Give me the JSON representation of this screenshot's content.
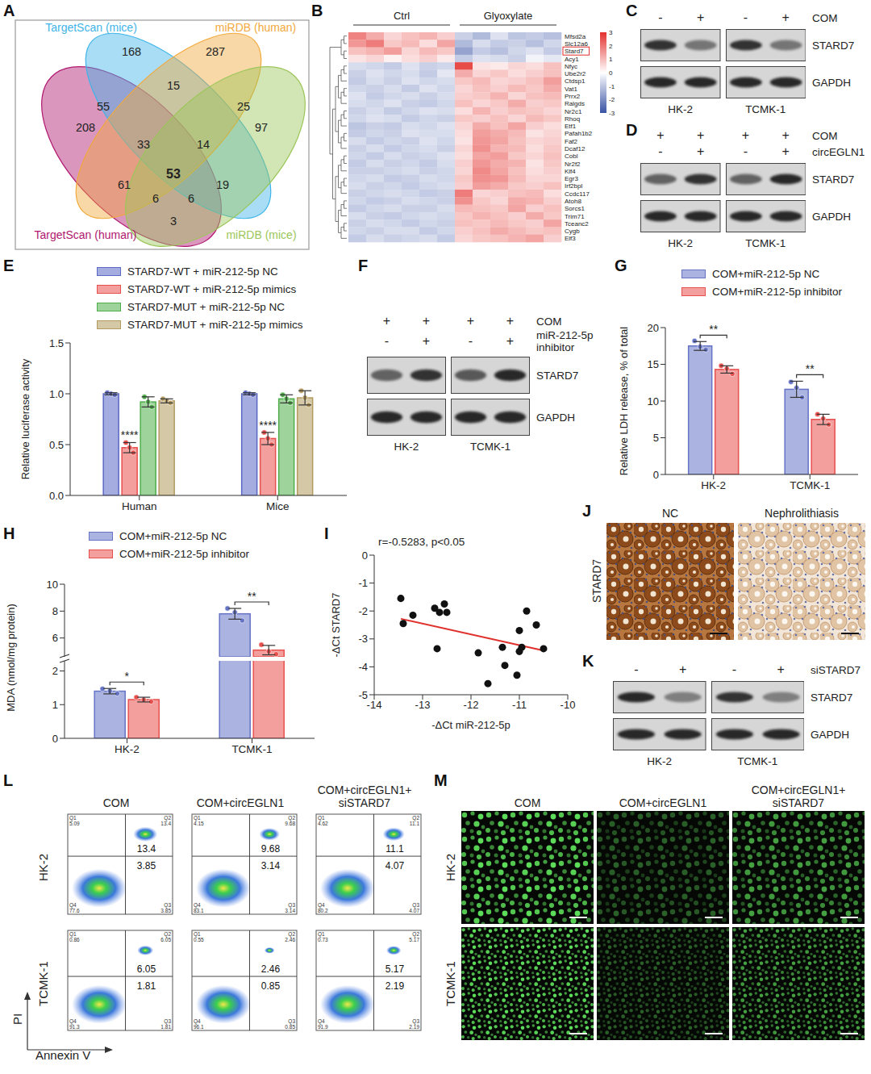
{
  "chart_data": [
    {
      "letter": "E",
      "type": "bar",
      "y_label": "Relative luciferase activity",
      "categories": [
        "Human",
        "Mice"
      ],
      "ylim": [
        0,
        1.5
      ],
      "yticks": [
        {
          "value": 0,
          "label": "0.0"
        },
        0.5,
        {
          "value": 1,
          "label": "1.0"
        },
        1.5
      ],
      "legend": "top",
      "series": [
        {
          "name": "STARD7-WT + miR-212-5p NC",
          "color": "#5b68c4",
          "values": [
            1,
            1
          ],
          "errors": [
            0.01,
            0.01
          ],
          "replicates": [
            [
              1.01,
              1,
              0.99
            ],
            [
              1.01,
              1,
              0.99
            ]
          ]
        },
        {
          "name": "STARD7-WT + miR-212-5p mimics",
          "color": "#e8504e",
          "values": [
            0.47,
            0.56
          ],
          "errors": [
            0.05,
            0.06
          ],
          "replicates": [
            [
              0.52,
              0.47,
              0.42
            ],
            [
              0.62,
              0.56,
              0.5
            ]
          ]
        },
        {
          "name": "STARD7-MUT + miR-212-5p NC",
          "color": "#4fae4a",
          "values": [
            0.92,
            0.95
          ],
          "errors": [
            0.05,
            0.04
          ],
          "replicates": [
            [
              0.97,
              0.92,
              0.87
            ],
            [
              0.99,
              0.95,
              0.91
            ]
          ]
        },
        {
          "name": "STARD7-MUT + miR-212-5p mimics",
          "color": "#b39a5f",
          "values": [
            0.93,
            0.96
          ],
          "errors": [
            0.02,
            0.07
          ],
          "replicates": [
            [
              0.95,
              0.93,
              0.91
            ],
            [
              1.03,
              0.96,
              0.89
            ]
          ]
        }
      ],
      "annotations": [
        {
          "category": "Human",
          "series": "STARD7-WT + miR-212-5p mimics",
          "text": "****"
        },
        {
          "category": "Mice",
          "series": "STARD7-WT + miR-212-5p mimics",
          "text": "****"
        }
      ]
    },
    {
      "letter": "G",
      "type": "bar",
      "y_label": "Relative LDH release, % of total",
      "categories": [
        "HK-2",
        "TCMK-1"
      ],
      "ylim": [
        0,
        20
      ],
      "yticks": [
        0,
        5,
        10,
        15,
        20
      ],
      "legend": "top",
      "series": [
        {
          "name": "COM+miR-212-5p NC",
          "color": "#6674c6",
          "values": [
            17.5,
            11.6
          ],
          "errors": [
            0.6,
            1.1
          ],
          "replicates": [
            [
              18.2,
              17.4,
              17.0
            ],
            [
              12.6,
              11.8,
              10.5
            ]
          ]
        },
        {
          "name": "COM+miR-212-5p inhibitor",
          "color": "#e8504e",
          "values": [
            14.3,
            7.5
          ],
          "errors": [
            0.5,
            0.7
          ],
          "replicates": [
            [
              14.8,
              14.4,
              13.7
            ],
            [
              8.2,
              7.6,
              6.8
            ]
          ]
        }
      ],
      "annotations": [
        {
          "category": "HK-2",
          "text": "**"
        },
        {
          "category": "TCMK-1",
          "text": "**"
        }
      ]
    },
    {
      "letter": "H",
      "type": "bar",
      "y_label": "MDA (nmol/mg protein)",
      "categories": [
        "HK-2",
        "TCMK-1"
      ],
      "ylim": [
        0,
        10
      ],
      "ybreak": [
        2.3,
        4.6
      ],
      "yticks": [
        0,
        1,
        2,
        6,
        8,
        10
      ],
      "legend": "top",
      "series": [
        {
          "name": "COM+miR-212-5p NC",
          "color": "#6674c6",
          "values": [
            1.4,
            7.8
          ],
          "errors": [
            0.08,
            0.4
          ],
          "replicates": [
            [
              1.47,
              1.4,
              1.33
            ],
            [
              8.2,
              7.9,
              7.3
            ]
          ]
        },
        {
          "name": "COM+miR-212-5p inhibitor",
          "color": "#e8504e",
          "values": [
            1.15,
            5.1
          ],
          "errors": [
            0.07,
            0.35
          ],
          "replicates": [
            [
              1.22,
              1.14,
              1.09
            ],
            [
              5.5,
              5.0,
              4.8
            ]
          ]
        }
      ],
      "annotations": [
        {
          "category": "HK-2",
          "text": "*"
        },
        {
          "category": "TCMK-1",
          "text": "**"
        }
      ]
    },
    {
      "letter": "I",
      "type": "scatter",
      "x_label": "-ΔCt miR-212-5p",
      "y_label": "-ΔCt STARD7",
      "annotation": "r=-0.5283, p<0.05",
      "xlim": [
        -14,
        -10
      ],
      "xticks": [
        -14,
        -13,
        -12,
        -11,
        -10
      ],
      "ylim": [
        -5,
        0
      ],
      "yticks": [
        0,
        -1,
        -2,
        -3,
        -4,
        -5
      ],
      "color": "#111111",
      "x": [
        -13.45,
        -13.4,
        -13.2,
        -12.75,
        -12.7,
        -12.65,
        -12.55,
        -12.5,
        -11.85,
        -11.65,
        -11.35,
        -11.3,
        -11.05,
        -11.0,
        -11.0,
        -10.95,
        -10.85,
        -10.65,
        -10.5
      ],
      "y": [
        -1.55,
        -2.45,
        -2.15,
        -1.9,
        -3.35,
        -2.05,
        -1.75,
        -2.05,
        -3.5,
        -4.6,
        -3.3,
        -3.95,
        -4.3,
        -2.7,
        -3.45,
        -3.3,
        -2.0,
        -2.5,
        -3.35
      ],
      "fit": {
        "x": [
          -13.45,
          -10.5
        ],
        "y": [
          -2.28,
          -3.42
        ],
        "color": "#e0302c"
      }
    }
  ],
  "venn": {
    "letter": "A",
    "sets": [
      {
        "name": "TargetScan (mice)",
        "color": "#3fb4e8"
      },
      {
        "name": "miRDB (human)",
        "color": "#f2a93b"
      },
      {
        "name": "TargetScan (human)",
        "color": "#b0176f"
      },
      {
        "name": "miRDB (mice)",
        "color": "#9cc65a"
      }
    ],
    "regions": [
      208,
      168,
      287,
      97,
      55,
      15,
      25,
      61,
      19,
      3,
      33,
      14,
      53,
      6,
      6
    ]
  },
  "heatmap": {
    "letter": "B",
    "groups": [
      "Ctrl",
      "Glyoxylate"
    ],
    "highlight": "Stard7",
    "genes": [
      "Mfsd2a",
      "Slc12a6",
      "Stard7",
      "Acy1",
      "Nfyc",
      "Ube2r2",
      "Ctdsp1",
      "Vat1",
      "Prrx2",
      "Ralgds",
      "Nr2c1",
      "Rhoq",
      "Etf1",
      "Pafah1b2",
      "Faf2",
      "Dcaf12",
      "Cobl",
      "Nr2f2",
      "Klf4",
      "Egr3",
      "Irf2bpl",
      "Ccdc117",
      "Atoh8",
      "Sorcs1",
      "Trim71",
      "Tceanc2",
      "Cygb",
      "Elf3"
    ],
    "cells": [
      [
        1.8,
        1.2,
        0.6,
        0.9,
        1.1,
        0.7,
        -0.8,
        -1.2,
        -0.5,
        -1.0,
        -0.9,
        -1.1
      ],
      [
        1.5,
        1.9,
        0.8,
        1.0,
        0.5,
        1.3,
        -1.2,
        -0.6,
        -0.9,
        -0.8,
        -1.1,
        -0.7
      ],
      [
        0.9,
        1.1,
        1.4,
        0.6,
        1.0,
        0.8,
        -1.6,
        -0.9,
        -1.1,
        -0.7,
        -0.5,
        -0.9
      ],
      [
        0.4,
        0.6,
        0.2,
        0.5,
        0.7,
        0.3,
        -0.9,
        -0.5,
        -0.6,
        -0.8,
        -0.2,
        -0.4
      ],
      [
        -0.6,
        -0.7,
        -0.9,
        -0.5,
        -0.8,
        -0.7,
        2.6,
        0.4,
        0.3,
        0.6,
        0.5,
        0.9
      ],
      [
        -0.8,
        -0.5,
        -0.7,
        -0.6,
        -0.9,
        -0.4,
        1.2,
        0.6,
        0.8,
        0.5,
        0.7,
        0.9
      ],
      [
        -0.9,
        -0.6,
        -0.8,
        -0.5,
        -0.7,
        -0.6,
        0.8,
        1.0,
        0.6,
        0.7,
        0.9,
        1.4
      ],
      [
        -0.7,
        -0.8,
        -0.6,
        -0.9,
        -0.5,
        -0.7,
        0.6,
        0.9,
        0.7,
        1.0,
        0.8,
        1.2
      ],
      [
        -0.5,
        -0.9,
        -0.7,
        -0.6,
        -0.8,
        -0.6,
        0.7,
        0.8,
        1.1,
        0.6,
        0.9,
        1.0
      ],
      [
        -0.6,
        -0.7,
        -0.5,
        -0.8,
        -0.9,
        -0.7,
        0.9,
        0.6,
        0.8,
        1.2,
        0.7,
        0.8
      ],
      [
        -0.8,
        -0.6,
        -0.9,
        -0.7,
        -0.5,
        -0.6,
        0.5,
        1.1,
        0.7,
        0.9,
        0.8,
        0.6
      ],
      [
        -0.7,
        -0.5,
        -0.6,
        -0.9,
        -0.7,
        -0.8,
        0.8,
        0.7,
        0.9,
        0.6,
        1.0,
        0.8
      ],
      [
        -1.0,
        -0.8,
        -0.9,
        -0.6,
        -0.7,
        -0.5,
        0.6,
        1.2,
        0.9,
        1.3,
        0.7,
        0.5
      ],
      [
        -0.9,
        -0.7,
        -0.8,
        -0.5,
        -0.6,
        -0.6,
        0.5,
        1.4,
        1.2,
        1.0,
        0.4,
        0.6
      ],
      [
        -0.6,
        -0.9,
        -0.7,
        -0.8,
        -0.5,
        -0.7,
        0.4,
        1.5,
        1.3,
        0.9,
        0.6,
        0.7
      ],
      [
        -0.8,
        -0.6,
        -0.9,
        -0.7,
        -0.6,
        -0.8,
        0.6,
        1.6,
        1.1,
        1.0,
        0.5,
        0.8
      ],
      [
        -0.7,
        -0.9,
        -0.6,
        -0.8,
        -0.7,
        -0.5,
        0.5,
        1.3,
        1.4,
        0.8,
        0.6,
        0.9
      ],
      [
        -0.9,
        -0.6,
        -0.8,
        -0.7,
        -0.9,
        -0.6,
        0.7,
        1.5,
        1.2,
        1.1,
        0.4,
        0.8
      ],
      [
        -0.8,
        -0.8,
        -0.7,
        -0.6,
        -0.8,
        -0.7,
        0.6,
        1.7,
        1.3,
        0.9,
        0.5,
        0.7
      ],
      [
        -0.7,
        -0.6,
        -0.9,
        -0.8,
        -0.6,
        -0.7,
        0.8,
        1.6,
        1.5,
        1.0,
        0.6,
        0.6
      ],
      [
        -0.6,
        -0.8,
        -0.7,
        -0.9,
        -0.7,
        -0.6,
        0.7,
        1.4,
        1.2,
        0.8,
        0.7,
        0.9
      ],
      [
        -0.8,
        -0.7,
        -0.6,
        -0.7,
        -0.9,
        -0.8,
        1.9,
        0.6,
        0.7,
        0.9,
        1.0,
        0.5
      ],
      [
        -0.7,
        -0.9,
        -0.8,
        -0.6,
        -0.7,
        -0.8,
        1.6,
        0.8,
        0.6,
        1.2,
        1.1,
        0.7
      ],
      [
        -0.9,
        -0.7,
        -0.6,
        -0.8,
        -0.8,
        -0.6,
        1.0,
        0.9,
        0.8,
        1.3,
        0.7,
        0.9
      ],
      [
        -0.6,
        -0.8,
        -0.9,
        -0.7,
        -0.6,
        -0.7,
        0.8,
        1.1,
        0.9,
        0.7,
        1.2,
        0.8
      ],
      [
        -0.8,
        -0.6,
        -0.7,
        -0.9,
        -0.7,
        -0.8,
        0.9,
        0.8,
        1.0,
        0.8,
        0.7,
        1.3
      ],
      [
        -0.7,
        -0.8,
        -0.6,
        -0.6,
        -0.9,
        -0.7,
        0.7,
        0.9,
        1.2,
        1.0,
        0.8,
        0.9
      ],
      [
        -0.9,
        -0.6,
        -0.8,
        -0.7,
        -0.6,
        -0.9,
        0.6,
        0.8,
        0.9,
        1.1,
        1.3,
        0.7
      ]
    ],
    "colorbar": {
      "range": [
        -3,
        3
      ],
      "ticks": [
        3,
        2,
        1,
        0,
        -1,
        -2,
        -3
      ],
      "colors": [
        "#3a53a4",
        "#ffffff",
        "#e3302d"
      ]
    }
  },
  "blots": [
    {
      "letter": "C",
      "conditions": [
        {
          "name": "COM",
          "signs": [
            "-",
            "+",
            "-",
            "+"
          ]
        }
      ],
      "proteins": [
        "STARD7",
        "GAPDH"
      ],
      "cell_lines": [
        "HK-2",
        "TCMK-1"
      ]
    },
    {
      "letter": "D",
      "conditions": [
        {
          "name": "COM",
          "signs": [
            "+",
            "+",
            "+",
            "+"
          ]
        },
        {
          "name": "circEGLN1",
          "signs": [
            "-",
            "+",
            "-",
            "+"
          ]
        }
      ],
      "proteins": [
        "STARD7",
        "GAPDH"
      ],
      "cell_lines": [
        "HK-2",
        "TCMK-1"
      ]
    },
    {
      "letter": "F",
      "conditions": [
        {
          "name": "COM",
          "signs": [
            "+",
            "+",
            "+",
            "+"
          ]
        },
        {
          "name": "miR-212-5p inhibitor",
          "signs": [
            "-",
            "+",
            "-",
            "+"
          ]
        }
      ],
      "proteins": [
        "STARD7",
        "GAPDH"
      ],
      "cell_lines": [
        "HK-2",
        "TCMK-1"
      ]
    },
    {
      "letter": "K",
      "conditions": [
        {
          "name": "siSTARD7",
          "signs": [
            "-",
            "+",
            "-",
            "+"
          ]
        }
      ],
      "proteins": [
        "STARD7",
        "GAPDH"
      ],
      "cell_lines": [
        "HK-2",
        "TCMK-1"
      ]
    }
  ],
  "ihc": {
    "letter": "J",
    "columns": [
      "NC",
      "Nephrolithiasis"
    ],
    "row_label": "STARD7"
  },
  "flow": {
    "letter": "L",
    "columns": [
      "COM",
      "COM+circEGLN1",
      "COM+circEGLN1+ siSTARD7"
    ],
    "rows": [
      "HK-2",
      "TCMK-1"
    ],
    "x_label": "Annexin V",
    "y_label": "PI",
    "quadrants": [
      "Q1",
      "Q2",
      "Q3",
      "Q4"
    ],
    "values": [
      [
        [
          5.09,
          13.4,
          3.85,
          77.6
        ],
        [
          4.15,
          9.68,
          3.14,
          83.1
        ],
        [
          4.62,
          11.1,
          4.07,
          80.2
        ]
      ],
      [
        [
          0.86,
          6.05,
          1.81,
          91.3
        ],
        [
          0.55,
          2.46,
          0.85,
          96.1
        ],
        [
          0.73,
          5.17,
          2.19,
          91.9
        ]
      ]
    ]
  },
  "fluorescence": {
    "letter": "M",
    "columns": [
      "COM",
      "COM+circEGLN1",
      "COM+circEGLN1+ siSTARD7"
    ],
    "rows": [
      "HK-2",
      "TCMK-1"
    ]
  }
}
